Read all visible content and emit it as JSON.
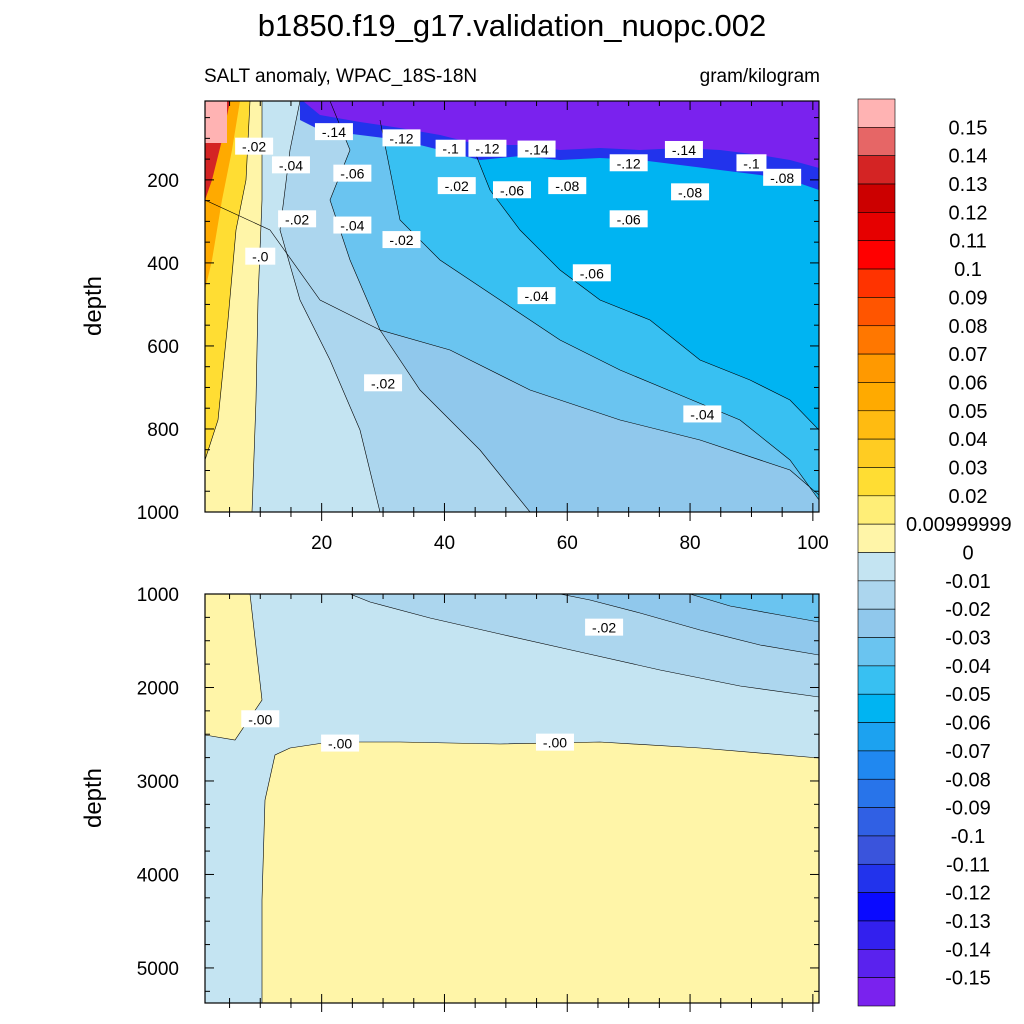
{
  "figure": {
    "title": "b1850.f19_g17.validation_nuopc.002",
    "subtitle_left": "SALT anomaly, WPAC_18S-18N",
    "subtitle_right": "gram/kilogram",
    "ylabel": "depth"
  },
  "colorbar": {
    "labels": [
      "0.15",
      "0.14",
      "0.13",
      "0.12",
      "0.11",
      "0.1",
      "0.09",
      "0.08",
      "0.07",
      "0.06",
      "0.05",
      "0.04",
      "0.03",
      "0.02",
      "0.00999999",
      "0",
      "-0.01",
      "-0.02",
      "-0.03",
      "-0.04",
      "-0.05",
      "-0.06",
      "-0.07",
      "-0.08",
      "-0.09",
      "-0.1",
      "-0.11",
      "-0.12",
      "-0.13",
      "-0.14",
      "-0.15"
    ],
    "colors": [
      "#ffb3b3",
      "#e66666",
      "#d42424",
      "#cc0000",
      "#e60000",
      "#ff0000",
      "#ff3300",
      "#ff5500",
      "#ff7700",
      "#ff9900",
      "#ffaa00",
      "#ffbb11",
      "#ffcc22",
      "#ffdd33",
      "#ffee77",
      "#fff5a8",
      "#c4e4f2",
      "#acd6ee",
      "#90c8ec",
      "#6ac4f0",
      "#38c0f2",
      "#00b4f2",
      "#1ca2f0",
      "#2088f0",
      "#2874ea",
      "#3060e4",
      "#3a54dc",
      "#2233ec",
      "#0a0aff",
      "#3320ee",
      "#5a22ee",
      "#7a22ee"
    ]
  },
  "chart_data": [
    {
      "type": "heatmap",
      "panel": "upper",
      "x_ticks": [
        "20",
        "40",
        "60",
        "80",
        "100"
      ],
      "x_tick_values": [
        20,
        40,
        60,
        80,
        100
      ],
      "xlim": [
        1,
        101
      ],
      "y_ticks": [
        "200",
        "400",
        "600",
        "800",
        "1000"
      ],
      "y_tick_values": [
        200,
        400,
        600,
        800,
        1000
      ],
      "ylim": [
        10,
        1000
      ],
      "y_inverted": true,
      "ylabel": "depth",
      "contour_labels": [
        {
          "text": "-.02",
          "x": 9,
          "y": 120
        },
        {
          "text": "-.14",
          "x": 22,
          "y": 85
        },
        {
          "text": "-.12",
          "x": 33,
          "y": 100
        },
        {
          "text": "-.1",
          "x": 41,
          "y": 125
        },
        {
          "text": "-.12",
          "x": 47,
          "y": 125
        },
        {
          "text": "-.14",
          "x": 55,
          "y": 127
        },
        {
          "text": "-.12",
          "x": 70,
          "y": 160
        },
        {
          "text": "-.14",
          "x": 79,
          "y": 128
        },
        {
          "text": "-.1",
          "x": 90,
          "y": 160
        },
        {
          "text": "-.08",
          "x": 95,
          "y": 195
        },
        {
          "text": "-.04",
          "x": 15,
          "y": 165
        },
        {
          "text": "-.06",
          "x": 25,
          "y": 185
        },
        {
          "text": "-.02",
          "x": 42,
          "y": 215
        },
        {
          "text": "-.06",
          "x": 51,
          "y": 225
        },
        {
          "text": "-.08",
          "x": 60,
          "y": 215
        },
        {
          "text": "-.06",
          "x": 70,
          "y": 295
        },
        {
          "text": "-.08",
          "x": 80,
          "y": 230
        },
        {
          "text": "-.02",
          "x": 16,
          "y": 295
        },
        {
          "text": "-.04",
          "x": 25,
          "y": 310
        },
        {
          "text": "-.02",
          "x": 33,
          "y": 345
        },
        {
          "text": "-.0",
          "x": 10,
          "y": 385
        },
        {
          "text": "-.06",
          "x": 64,
          "y": 425
        },
        {
          "text": "-.04",
          "x": 55,
          "y": 480
        },
        {
          "text": "-.02",
          "x": 30,
          "y": 690
        },
        {
          "text": "-.04",
          "x": 82,
          "y": 765
        }
      ]
    },
    {
      "type": "heatmap",
      "panel": "lower",
      "x_ticks": [],
      "xlim": [
        1,
        101
      ],
      "y_ticks": [
        "1000",
        "2000",
        "3000",
        "4000",
        "5000"
      ],
      "y_tick_values": [
        1000,
        2000,
        3000,
        4000,
        5000
      ],
      "ylim": [
        1000,
        5375
      ],
      "y_inverted": true,
      "ylabel": "depth",
      "contour_labels": [
        {
          "text": "-.02",
          "x": 66,
          "y": 1360
        },
        {
          "text": "-.00",
          "x": 10,
          "y": 2340
        },
        {
          "text": "-.00",
          "x": 23,
          "y": 2600
        },
        {
          "text": "-.00",
          "x": 58,
          "y": 2590
        }
      ]
    }
  ]
}
